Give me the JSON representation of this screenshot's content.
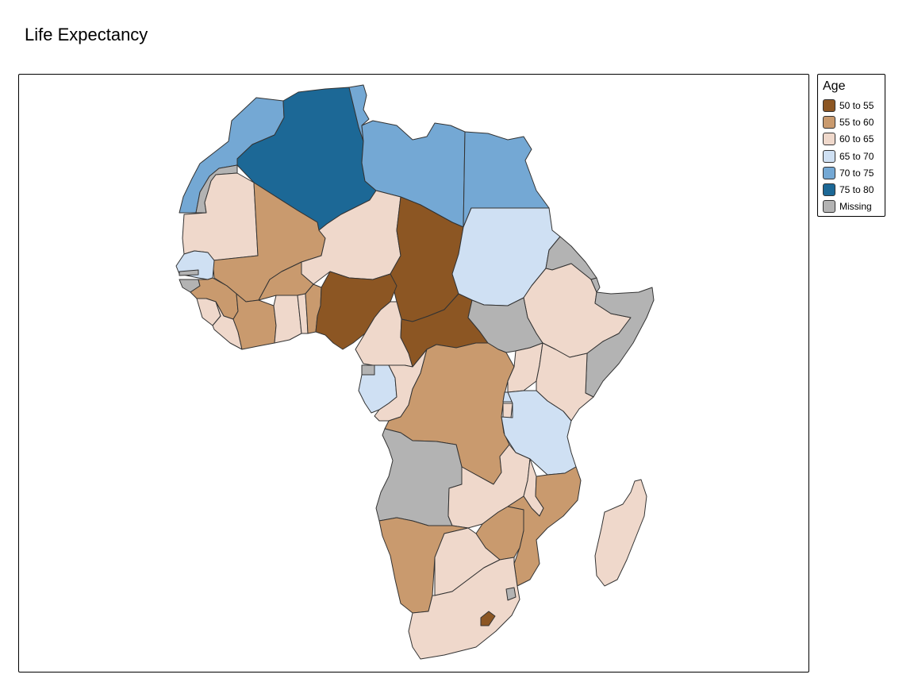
{
  "title": "Life Expectancy",
  "legend": {
    "title": "Age",
    "items": [
      {
        "label": "50 to 55",
        "color": "#8c5623"
      },
      {
        "label": "55 to 60",
        "color": "#c99a6e"
      },
      {
        "label": "60 to 65",
        "color": "#efd8cb"
      },
      {
        "label": "65 to 70",
        "color": "#cfe0f3"
      },
      {
        "label": "70 to 75",
        "color": "#74a8d4"
      },
      {
        "label": "75 to 80",
        "color": "#1c6896"
      },
      {
        "label": "Missing",
        "color": "#b3b3b3"
      }
    ]
  },
  "regions": [
    {
      "name": "Morocco",
      "class": "70 to 75"
    },
    {
      "name": "Western Sahara",
      "class": "Missing"
    },
    {
      "name": "Algeria",
      "class": "75 to 80"
    },
    {
      "name": "Tunisia",
      "class": "70 to 75"
    },
    {
      "name": "Libya",
      "class": "70 to 75"
    },
    {
      "name": "Egypt",
      "class": "70 to 75"
    },
    {
      "name": "Mauritania",
      "class": "60 to 65"
    },
    {
      "name": "Mali",
      "class": "55 to 60"
    },
    {
      "name": "Niger",
      "class": "60 to 65"
    },
    {
      "name": "Chad",
      "class": "50 to 55"
    },
    {
      "name": "Sudan",
      "class": "65 to 70"
    },
    {
      "name": "Eritrea",
      "class": "Missing"
    },
    {
      "name": "Djibouti",
      "class": "Missing"
    },
    {
      "name": "Ethiopia",
      "class": "60 to 65"
    },
    {
      "name": "Somalia",
      "class": "Missing"
    },
    {
      "name": "Senegal",
      "class": "65 to 70"
    },
    {
      "name": "Gambia",
      "class": "Missing"
    },
    {
      "name": "Guinea-Bissau",
      "class": "Missing"
    },
    {
      "name": "Guinea",
      "class": "55 to 60"
    },
    {
      "name": "Sierra Leone",
      "class": "60 to 65"
    },
    {
      "name": "Liberia",
      "class": "60 to 65"
    },
    {
      "name": "Cote d'Ivoire",
      "class": "55 to 60"
    },
    {
      "name": "Burkina Faso",
      "class": "55 to 60"
    },
    {
      "name": "Ghana",
      "class": "60 to 65"
    },
    {
      "name": "Togo",
      "class": "60 to 65"
    },
    {
      "name": "Benin",
      "class": "55 to 60"
    },
    {
      "name": "Nigeria",
      "class": "50 to 55"
    },
    {
      "name": "Cameroon",
      "class": "60 to 65"
    },
    {
      "name": "Central African Republic",
      "class": "50 to 55"
    },
    {
      "name": "South Sudan",
      "class": "Missing"
    },
    {
      "name": "Equatorial Guinea",
      "class": "Missing"
    },
    {
      "name": "Gabon",
      "class": "65 to 70"
    },
    {
      "name": "Congo",
      "class": "60 to 65"
    },
    {
      "name": "DR Congo",
      "class": "55 to 60"
    },
    {
      "name": "Uganda",
      "class": "60 to 65"
    },
    {
      "name": "Kenya",
      "class": "60 to 65"
    },
    {
      "name": "Rwanda",
      "class": "65 to 70"
    },
    {
      "name": "Burundi",
      "class": "60 to 65"
    },
    {
      "name": "Tanzania",
      "class": "65 to 70"
    },
    {
      "name": "Angola",
      "class": "Missing"
    },
    {
      "name": "Zambia",
      "class": "60 to 65"
    },
    {
      "name": "Malawi",
      "class": "60 to 65"
    },
    {
      "name": "Mozambique",
      "class": "55 to 60"
    },
    {
      "name": "Zimbabwe",
      "class": "55 to 60"
    },
    {
      "name": "Namibia",
      "class": "55 to 60"
    },
    {
      "name": "Botswana",
      "class": "60 to 65"
    },
    {
      "name": "South Africa",
      "class": "60 to 65"
    },
    {
      "name": "Lesotho",
      "class": "50 to 55"
    },
    {
      "name": "Eswatini",
      "class": "Missing"
    },
    {
      "name": "Madagascar",
      "class": "60 to 65"
    }
  ]
}
